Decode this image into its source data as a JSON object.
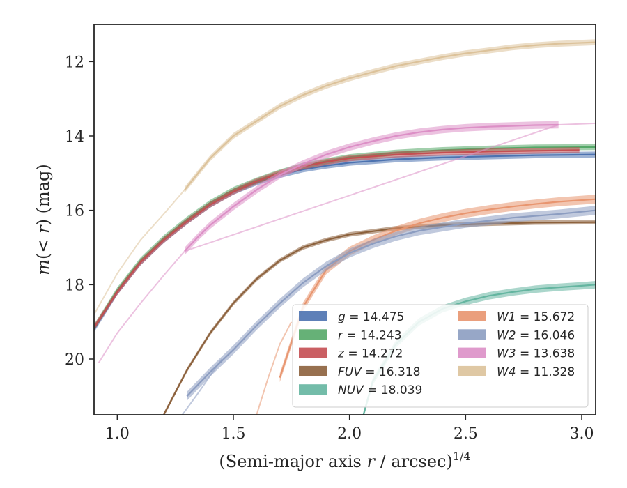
{
  "chart_data": {
    "type": "line",
    "title": "",
    "xlabel_main": "(Semi-major axis ",
    "xlabel_var": "r",
    "xlabel_rest": " / arcsec)",
    "xlabel_sup": "1/4",
    "ylabel_pre": "m",
    "ylabel_mid": "(< ",
    "ylabel_var": "r",
    "ylabel_post": ") (mag)",
    "xlim": [
      0.9,
      3.06
    ],
    "ylim": [
      21.5,
      11.0
    ],
    "y_inverted": true,
    "xticks": [
      1.0,
      1.5,
      2.0,
      2.5,
      3.0
    ],
    "xtick_labels": [
      "1.0",
      "1.5",
      "2.0",
      "2.5",
      "3.0"
    ],
    "yticks": [
      12,
      14,
      16,
      18,
      20
    ],
    "ytick_labels": [
      "12",
      "14",
      "16",
      "18",
      "20"
    ],
    "grid": false,
    "legend_position": "lower-right",
    "series": [
      {
        "name": "g",
        "label": "= 14.475",
        "color": "#4c72b0",
        "band": 0.08,
        "x": [
          0.9,
          1.0,
          1.1,
          1.2,
          1.3,
          1.4,
          1.5,
          1.6,
          1.7,
          1.8,
          1.9,
          2.0,
          2.2,
          2.4,
          2.6,
          2.8,
          3.06
        ],
        "y": [
          19.2,
          18.2,
          17.4,
          16.8,
          16.3,
          15.85,
          15.5,
          15.25,
          15.05,
          14.9,
          14.8,
          14.72,
          14.63,
          14.58,
          14.55,
          14.52,
          14.5
        ],
        "ghost": []
      },
      {
        "name": "r",
        "label": "= 14.243",
        "color": "#55a868",
        "band": 0.08,
        "x": [
          0.9,
          1.0,
          1.1,
          1.2,
          1.3,
          1.4,
          1.5,
          1.6,
          1.7,
          1.8,
          1.9,
          2.0,
          2.2,
          2.4,
          2.6,
          2.8,
          3.06
        ],
        "y": [
          19.15,
          18.15,
          17.35,
          16.75,
          16.25,
          15.8,
          15.45,
          15.2,
          14.98,
          14.8,
          14.68,
          14.57,
          14.45,
          14.38,
          14.34,
          14.31,
          14.3
        ],
        "ghost": []
      },
      {
        "name": "z",
        "label": "= 14.272",
        "color": "#c44e52",
        "band": 0.08,
        "x": [
          0.9,
          1.0,
          1.1,
          1.2,
          1.3,
          1.4,
          1.5,
          1.6,
          1.7,
          1.8,
          1.9,
          2.0,
          2.2,
          2.4,
          2.6,
          2.8,
          2.99
        ],
        "y": [
          19.15,
          18.2,
          17.4,
          16.8,
          16.3,
          15.85,
          15.5,
          15.22,
          15.0,
          14.82,
          14.7,
          14.6,
          14.5,
          14.45,
          14.42,
          14.4,
          14.38
        ],
        "ghost": []
      },
      {
        "name": "FUV",
        "label": "= 16.318",
        "color": "#8c613c",
        "band": 0.06,
        "x": [
          1.2,
          1.3,
          1.4,
          1.5,
          1.6,
          1.7,
          1.8,
          1.9,
          2.0,
          2.2,
          2.4,
          2.6,
          2.8,
          3.06
        ],
        "y": [
          21.5,
          20.3,
          19.3,
          18.5,
          17.85,
          17.35,
          17.0,
          16.8,
          16.65,
          16.48,
          16.4,
          16.36,
          16.33,
          16.32
        ],
        "ghost": []
      },
      {
        "name": "NUV",
        "label": "= 18.039",
        "color": "#64b5a0",
        "band": 0.1,
        "x": [
          2.06,
          2.1,
          2.2,
          2.3,
          2.4,
          2.5,
          2.6,
          2.7,
          2.8,
          2.9,
          3.0,
          3.06
        ],
        "y": [
          21.5,
          20.6,
          19.6,
          19.0,
          18.65,
          18.45,
          18.3,
          18.2,
          18.12,
          18.07,
          18.03,
          18.0
        ],
        "ghost": []
      },
      {
        "name": "W1",
        "label": "= 15.672",
        "color": "#e8956f",
        "band": 0.12,
        "x": [
          1.7,
          1.8,
          1.9,
          2.0,
          2.1,
          2.2,
          2.3,
          2.4,
          2.5,
          2.6,
          2.7,
          2.8,
          2.9,
          3.06
        ],
        "y": [
          20.5,
          18.6,
          17.6,
          17.1,
          16.8,
          16.55,
          16.35,
          16.2,
          16.08,
          15.98,
          15.9,
          15.83,
          15.77,
          15.7
        ],
        "ghost": [
          [
            1.6,
            21.5
          ],
          [
            1.65,
            20.5
          ],
          [
            1.7,
            19.6
          ],
          [
            1.75,
            19.0
          ]
        ]
      },
      {
        "name": "W2",
        "label": "= 16.046",
        "color": "#8c9dc1",
        "band": 0.12,
        "x": [
          1.3,
          1.4,
          1.5,
          1.6,
          1.7,
          1.8,
          1.9,
          2.0,
          2.1,
          2.2,
          2.3,
          2.4,
          2.5,
          2.6,
          2.7,
          2.8,
          2.9,
          3.06
        ],
        "y": [
          21.0,
          20.35,
          19.75,
          19.1,
          18.5,
          17.95,
          17.5,
          17.15,
          16.9,
          16.7,
          16.55,
          16.45,
          16.35,
          16.28,
          16.2,
          16.15,
          16.1,
          16.0
        ],
        "ghost": [
          [
            1.28,
            21.5
          ],
          [
            1.35,
            20.9
          ],
          [
            1.45,
            20.0
          ]
        ]
      },
      {
        "name": "W3",
        "label": "= 13.638",
        "color": "#dc8fc6",
        "band": 0.1,
        "x": [
          1.29,
          1.35,
          1.4,
          1.5,
          1.6,
          1.7,
          1.8,
          1.9,
          2.0,
          2.1,
          2.2,
          2.3,
          2.4,
          2.5,
          2.6,
          2.7,
          2.8,
          2.9
        ],
        "y": [
          17.1,
          16.7,
          16.4,
          15.9,
          15.45,
          15.05,
          14.75,
          14.5,
          14.3,
          14.14,
          14.0,
          13.9,
          13.83,
          13.78,
          13.75,
          13.73,
          13.71,
          13.7
        ],
        "ghost": [
          [
            0.92,
            20.1
          ],
          [
            1.0,
            19.3
          ],
          [
            1.1,
            18.5
          ],
          [
            1.2,
            17.75
          ],
          [
            1.29,
            17.1
          ],
          [
            2.9,
            13.7
          ],
          [
            3.06,
            13.66
          ]
        ]
      },
      {
        "name": "W4",
        "label": "= 11.328",
        "color": "#dcc29a",
        "band": 0.08,
        "x": [
          1.29,
          1.4,
          1.5,
          1.6,
          1.7,
          1.8,
          1.9,
          2.0,
          2.1,
          2.2,
          2.3,
          2.4,
          2.5,
          2.6,
          2.7,
          2.8,
          2.9,
          3.06
        ],
        "y": [
          15.45,
          14.6,
          14.0,
          13.6,
          13.2,
          12.9,
          12.65,
          12.45,
          12.28,
          12.12,
          12.0,
          11.88,
          11.78,
          11.7,
          11.62,
          11.56,
          11.52,
          11.48
        ],
        "ghost": [
          [
            0.9,
            18.8
          ],
          [
            1.0,
            17.7
          ],
          [
            1.1,
            16.8
          ],
          [
            1.2,
            16.1
          ],
          [
            1.29,
            15.45
          ]
        ]
      }
    ]
  }
}
